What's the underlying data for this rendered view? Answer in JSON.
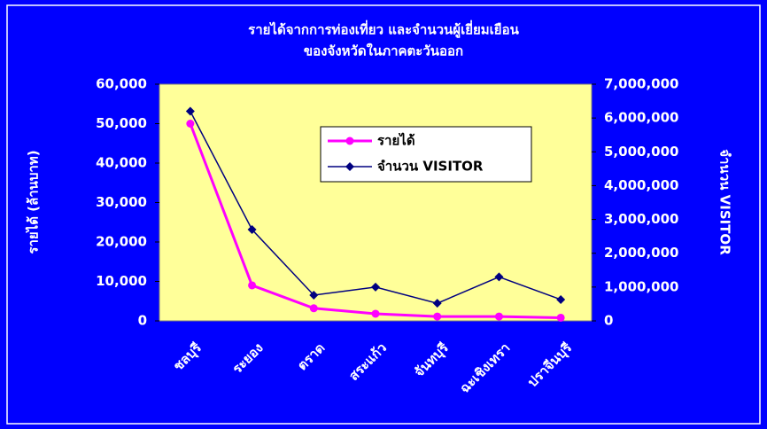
{
  "chart_data": {
    "type": "line",
    "title": [
      "รายได้จากการท่องเที่ยว และจำนวนผู้เยี่ยมเยือน",
      "ของจังหวัดในภาคตะวันออก"
    ],
    "y_label": "รายได้ (ล้านบาท)",
    "y2_label": "จำนวน VISITOR",
    "categories": [
      "ชลบุรี",
      "ระยอง",
      "ตราด",
      "สระแก้ว",
      "จันทบุรี",
      "ฉะเชิงเทรา",
      "ปราจีนบุรี"
    ],
    "series": [
      {
        "name": "รายได้",
        "color": "#ff00ff",
        "marker": "circle",
        "values": [
          50000,
          9000,
          3200,
          1800,
          1100,
          1100,
          800
        ]
      },
      {
        "name": "จำนวน VISITOR",
        "color": "#000080",
        "marker": "diamond",
        "axis": "y2",
        "values": [
          6200000,
          2700000,
          760000,
          1000000,
          520000,
          1300000,
          630000
        ]
      }
    ],
    "ylim": [
      0,
      60000
    ],
    "yticks": [
      0,
      {
        "value": 10000,
        "label": "10,000"
      },
      {
        "value": 20000,
        "label": "20,000"
      },
      {
        "value": 30000,
        "label": "30,000"
      },
      {
        "value": 40000,
        "label": "40,000"
      },
      {
        "value": 50000,
        "label": "50,000"
      },
      {
        "value": 60000,
        "label": "60,000"
      }
    ],
    "y2lim": [
      0,
      7000000
    ],
    "y2ticks": [
      0,
      {
        "value": 1000000,
        "label": "1,000,000"
      },
      {
        "value": 2000000,
        "label": "2,000,000"
      },
      {
        "value": 3000000,
        "label": "3,000,000"
      },
      {
        "value": 4000000,
        "label": "4,000,000"
      },
      {
        "value": 5000000,
        "label": "5,000,000"
      },
      {
        "value": 6000000,
        "label": "6,000,000"
      },
      {
        "value": 7000000,
        "label": "7,000,000"
      }
    ],
    "legend": "inside-top"
  }
}
